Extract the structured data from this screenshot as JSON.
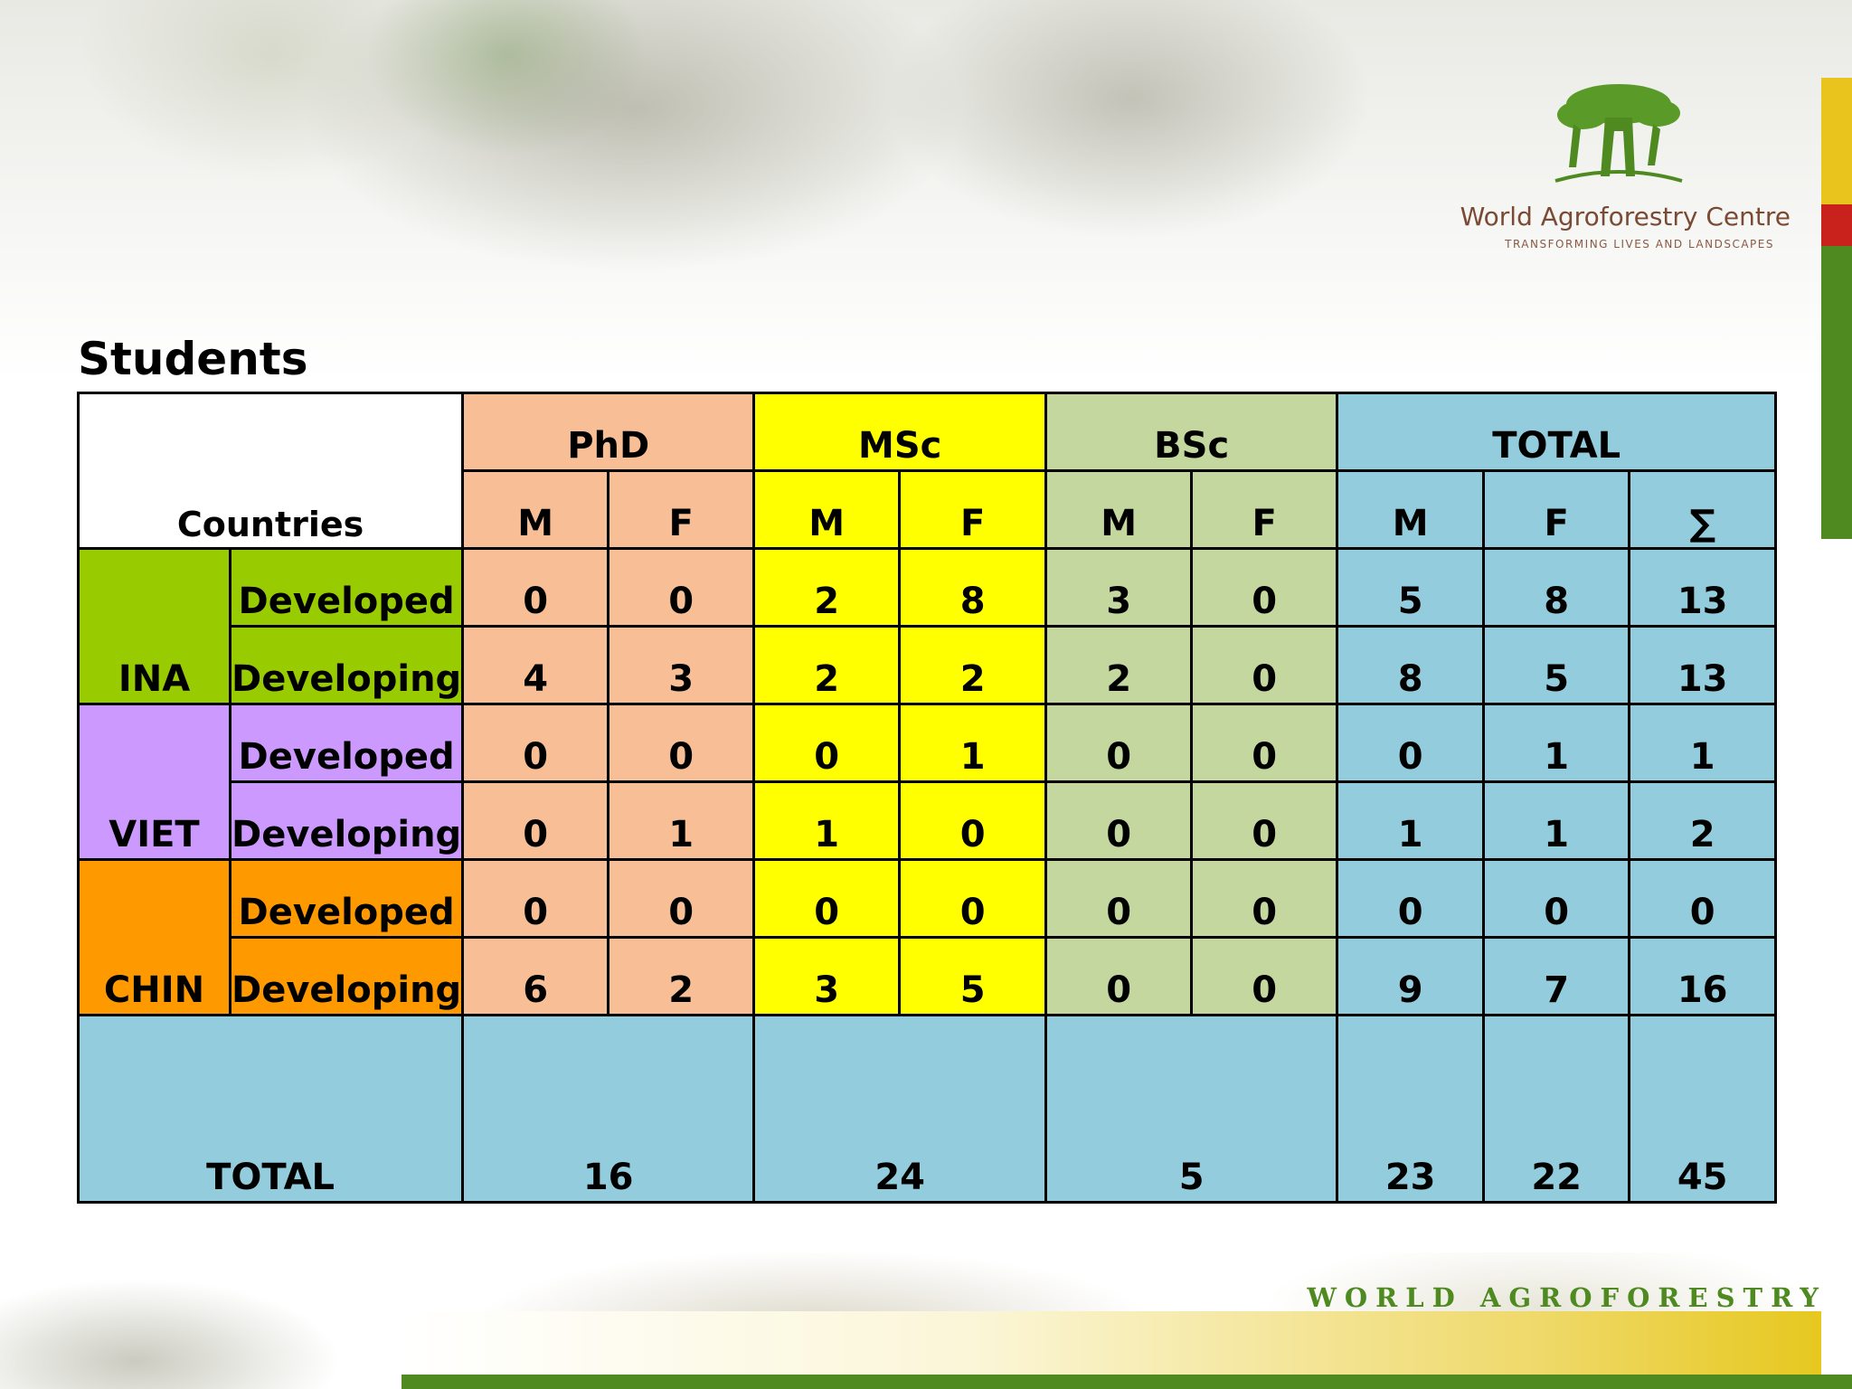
{
  "heading": "Students",
  "logo": {
    "name": "World Agroforestry Centre",
    "tagline": "TRANSFORMING LIVES AND LANDSCAPES"
  },
  "footer": "WORLD AGROFORESTRY CENTRE",
  "table": {
    "countries_label": "Countries",
    "groups": [
      "PhD",
      "MSc",
      "BSc",
      "TOTAL"
    ],
    "sub": {
      "m": "M",
      "f": "F",
      "sum": "∑"
    },
    "countries": [
      {
        "name": "INA",
        "rows": [
          {
            "type": "Developed",
            "values": [
              "0",
              "0",
              "2",
              "8",
              "3",
              "0",
              "5",
              "8",
              "13"
            ]
          },
          {
            "type": "Developing",
            "values": [
              "4",
              "3",
              "2",
              "2",
              "2",
              "0",
              "8",
              "5",
              "13"
            ]
          }
        ]
      },
      {
        "name": "VIET",
        "rows": [
          {
            "type": "Developed",
            "values": [
              "0",
              "0",
              "0",
              "1",
              "0",
              "0",
              "0",
              "1",
              "1"
            ]
          },
          {
            "type": "Developing",
            "values": [
              "0",
              "1",
              "1",
              "0",
              "0",
              "0",
              "1",
              "1",
              "2"
            ]
          }
        ]
      },
      {
        "name": "CHIN",
        "rows": [
          {
            "type": "Developed",
            "values": [
              "0",
              "0",
              "0",
              "0",
              "0",
              "0",
              "0",
              "0",
              "0"
            ]
          },
          {
            "type": "Developing",
            "values": [
              "6",
              "2",
              "3",
              "5",
              "0",
              "0",
              "9",
              "7",
              "16"
            ]
          }
        ]
      }
    ],
    "total": {
      "label": "TOTAL",
      "phd": "16",
      "msc": "24",
      "bsc": "5",
      "m": "23",
      "f": "22",
      "sum": "45"
    }
  },
  "colors": {
    "phd": "#f8bf96",
    "msc": "#ffff00",
    "bsc": "#c4d79e",
    "total": "#93cddd",
    "ina": "#99cc00",
    "viet": "#cc99ff",
    "chin": "#ff9900",
    "brand_green": "#4f8a21"
  }
}
